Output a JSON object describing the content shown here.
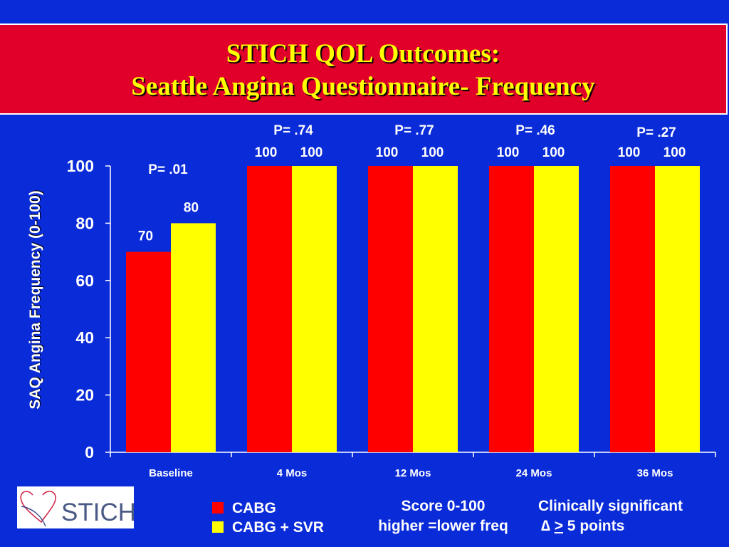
{
  "title": {
    "line1": "STICH QOL Outcomes:",
    "line2": "Seattle Angina Questionnaire- Frequency"
  },
  "chart_data": {
    "type": "bar",
    "ylabel": "SAQ Angina Frequency  (0-100)",
    "ylim": [
      0,
      100
    ],
    "yticks": [
      0,
      20,
      40,
      60,
      80,
      100
    ],
    "categories": [
      "Baseline",
      "4 Mos",
      "12 Mos",
      "24 Mos",
      "36 Mos"
    ],
    "series": [
      {
        "name": "CABG",
        "color": "#ff0000",
        "values": [
          70,
          100,
          100,
          100,
          100
        ]
      },
      {
        "name": "CABG + SVR",
        "color": "#ffff00",
        "values": [
          80,
          100,
          100,
          100,
          100
        ]
      }
    ],
    "data_labels": [
      [
        "70",
        "80"
      ],
      [
        "100",
        "100"
      ],
      [
        "100",
        "100"
      ],
      [
        "100",
        "100"
      ],
      [
        "100",
        "100"
      ]
    ],
    "p_values": [
      "P=  .01",
      "P=  .74",
      "P=  .77",
      "P=  .46",
      "P=  .27"
    ],
    "grid": false,
    "legend_position": "bottom-left"
  },
  "legend": [
    {
      "label": "CABG",
      "color": "#ff0000"
    },
    {
      "label": "CABG + SVR",
      "color": "#ffff00"
    }
  ],
  "notes": {
    "score_line1": "Score 0-100",
    "score_line2": "higher =lower freq",
    "clin_line1": "Clinically significant",
    "clin_delta": "∆",
    "clin_ge": ">",
    "clin_rest": " 5 points"
  },
  "logo": {
    "text": "STICH",
    "icon": "heart-outline-icon"
  }
}
